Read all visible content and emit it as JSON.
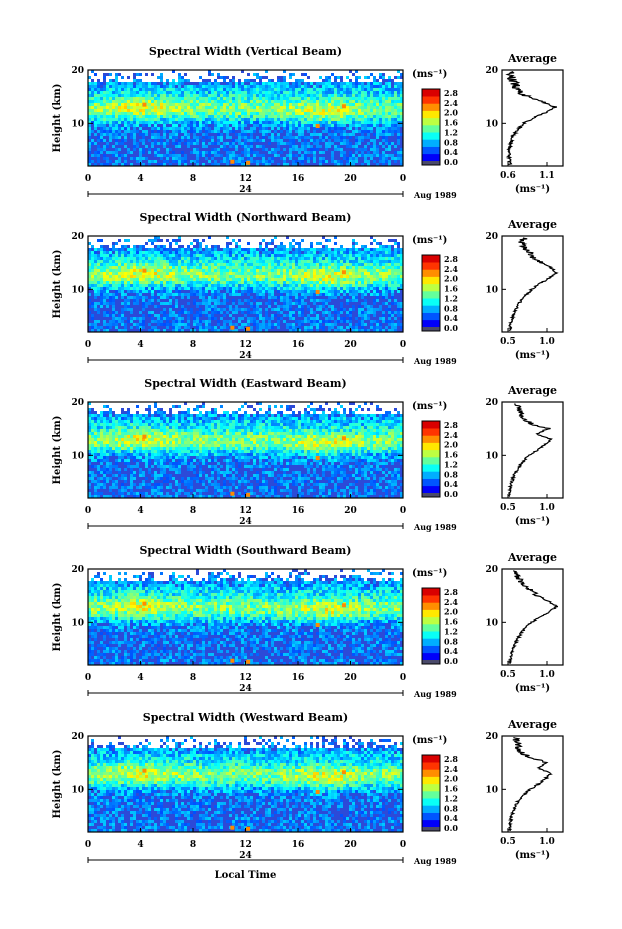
{
  "chart_data": [
    {
      "type": "heatmap",
      "title": "Spectral Width (Vertical Beam)",
      "ylabel": "Height (km)",
      "ylim": [
        2,
        20
      ],
      "yticks": [
        "20",
        "10"
      ],
      "xticks": [
        "0",
        "4",
        "8",
        "12",
        "16",
        "20",
        "0"
      ],
      "xlim": [
        0,
        24
      ],
      "day_label": "24",
      "date_label": "Aug 1989",
      "colorbar": {
        "unit": "(ms⁻¹)",
        "labels": [
          "2.8",
          "2.4",
          "2.0",
          "1.6",
          "1.2",
          "0.8",
          "0.4",
          "0.0"
        ],
        "range": [
          0,
          3.0
        ]
      },
      "profile": {
        "title": "Average",
        "xlabel": "(ms⁻¹)",
        "xticks": [
          "0.6",
          "1.1"
        ],
        "xlim": [
          0.55,
          1.15
        ],
        "yticks": [
          "20",
          "10"
        ],
        "height": [
          2.5,
          4,
          6,
          8,
          9,
          10,
          11,
          12,
          13,
          14,
          15,
          16,
          17,
          18,
          19,
          20
        ],
        "value": [
          0.63,
          0.62,
          0.63,
          0.67,
          0.72,
          0.76,
          0.86,
          0.98,
          1.08,
          0.96,
          0.79,
          0.71,
          0.69,
          0.66,
          0.63,
          0.62
        ]
      }
    },
    {
      "type": "heatmap",
      "title": "Spectral Width (Northward Beam)",
      "ylabel": "Height (km)",
      "ylim": [
        2,
        20
      ],
      "yticks": [
        "20",
        "10"
      ],
      "xticks": [
        "0",
        "4",
        "8",
        "12",
        "16",
        "20",
        "0"
      ],
      "xlim": [
        0,
        24
      ],
      "day_label": "24",
      "date_label": "Aug 1989",
      "colorbar": {
        "unit": "(ms⁻¹)",
        "labels": [
          "2.8",
          "2.4",
          "2.0",
          "1.6",
          "1.2",
          "0.8",
          "0.4",
          "0.0"
        ],
        "range": [
          0,
          3.0
        ]
      },
      "profile": {
        "title": "Average",
        "xlabel": "(ms⁻¹)",
        "xticks": [
          "0.5",
          "1.0"
        ],
        "xlim": [
          0.45,
          1.25
        ],
        "yticks": [
          "20",
          "10"
        ],
        "height": [
          2.5,
          4,
          6,
          8,
          9,
          10,
          11,
          12,
          13,
          14,
          15,
          16,
          17,
          18,
          19,
          20
        ],
        "value": [
          0.55,
          0.57,
          0.62,
          0.7,
          0.77,
          0.84,
          0.94,
          1.06,
          1.16,
          1.1,
          0.98,
          0.86,
          0.8,
          0.74,
          0.7,
          0.8
        ]
      }
    },
    {
      "type": "heatmap",
      "title": "Spectral Width (Eastward Beam)",
      "ylabel": "Height (km)",
      "ylim": [
        2,
        20
      ],
      "yticks": [
        "20",
        "10"
      ],
      "xticks": [
        "0",
        "4",
        "8",
        "12",
        "16",
        "20",
        "0"
      ],
      "xlim": [
        0,
        24
      ],
      "day_label": "24",
      "date_label": "Aug 1989",
      "colorbar": {
        "unit": "(ms⁻¹)",
        "labels": [
          "2.8",
          "2.4",
          "2.0",
          "1.6",
          "1.2",
          "0.8",
          "0.4",
          "0.0"
        ],
        "range": [
          0,
          3.0
        ]
      },
      "profile": {
        "title": "Average",
        "xlabel": "(ms⁻¹)",
        "xticks": [
          "0.5",
          "1.0"
        ],
        "xlim": [
          0.45,
          1.25
        ],
        "yticks": [
          "20",
          "10"
        ],
        "height": [
          2.5,
          4,
          6,
          8,
          9,
          10,
          11,
          12,
          13,
          14,
          15,
          16,
          17,
          18,
          19,
          20
        ],
        "value": [
          0.55,
          0.56,
          0.6,
          0.68,
          0.74,
          0.8,
          0.92,
          1.0,
          1.1,
          0.9,
          1.05,
          0.82,
          0.72,
          0.68,
          0.66,
          0.62
        ]
      }
    },
    {
      "type": "heatmap",
      "title": "Spectral Width (Southward Beam)",
      "ylabel": "Height (km)",
      "ylim": [
        2,
        20
      ],
      "yticks": [
        "20",
        "10"
      ],
      "xticks": [
        "0",
        "4",
        "8",
        "12",
        "16",
        "20",
        "0"
      ],
      "xlim": [
        0,
        24
      ],
      "day_label": "24",
      "date_label": "Aug 1989",
      "colorbar": {
        "unit": "(ms⁻¹)",
        "labels": [
          "2.8",
          "2.4",
          "2.0",
          "1.6",
          "1.2",
          "0.8",
          "0.4",
          "0.0"
        ],
        "range": [
          0,
          3.0
        ]
      },
      "profile": {
        "title": "Average",
        "xlabel": "(ms⁻¹)",
        "xticks": [
          "0.5",
          "1.0"
        ],
        "xlim": [
          0.45,
          1.25
        ],
        "yticks": [
          "20",
          "10"
        ],
        "height": [
          2.5,
          4,
          6,
          8,
          9,
          10,
          11,
          12,
          13,
          14,
          15,
          16,
          17,
          18,
          19,
          20
        ],
        "value": [
          0.55,
          0.57,
          0.62,
          0.7,
          0.76,
          0.84,
          0.95,
          1.07,
          1.17,
          1.05,
          0.92,
          0.82,
          0.74,
          0.68,
          0.64,
          0.62
        ]
      }
    },
    {
      "type": "heatmap",
      "title": "Spectral Width (Westward Beam)",
      "ylabel": "Height (km)",
      "ylim": [
        2,
        20
      ],
      "yticks": [
        "20",
        "10"
      ],
      "xticks": [
        "0",
        "4",
        "8",
        "12",
        "16",
        "20",
        "0"
      ],
      "xlim": [
        0,
        24
      ],
      "day_label": "24",
      "date_label": "Aug 1989",
      "colorbar": {
        "unit": "(ms⁻¹)",
        "labels": [
          "2.8",
          "2.4",
          "2.0",
          "1.6",
          "1.2",
          "0.8",
          "0.4",
          "0.0"
        ],
        "range": [
          0,
          3.0
        ]
      },
      "profile": {
        "title": "Average",
        "xlabel": "(ms⁻¹)",
        "xticks": [
          "0.5",
          "1.0"
        ],
        "xlim": [
          0.45,
          1.25
        ],
        "yticks": [
          "20",
          "10"
        ],
        "height": [
          2.5,
          4,
          6,
          8,
          9,
          10,
          11,
          12,
          13,
          14,
          15,
          16,
          17,
          18,
          19,
          20
        ],
        "value": [
          0.55,
          0.56,
          0.6,
          0.67,
          0.74,
          0.82,
          0.93,
          1.02,
          1.1,
          0.92,
          1.05,
          0.8,
          0.7,
          0.66,
          0.64,
          0.62
        ]
      }
    }
  ],
  "footer": {
    "xlabel": "Local Time"
  }
}
